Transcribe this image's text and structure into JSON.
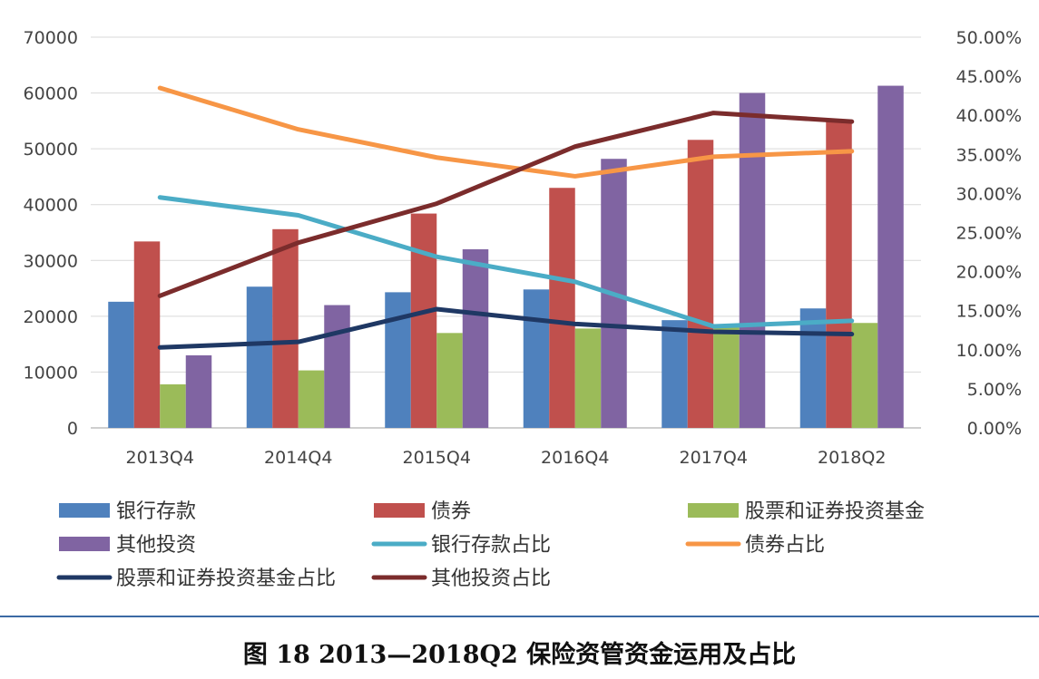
{
  "caption": "图 18  2013—2018Q2 保险资管资金运用及占比",
  "chart_data": {
    "type": "bar",
    "categories": [
      "2013Q4",
      "2014Q4",
      "2015Q4",
      "2016Q4",
      "2017Q4",
      "2018Q2"
    ],
    "y_left": {
      "min": 0,
      "max": 70000,
      "ticks": [
        0,
        10000,
        20000,
        30000,
        40000,
        50000,
        60000,
        70000
      ],
      "tick_labels": [
        "0",
        "10000",
        "20000",
        "30000",
        "40000",
        "50000",
        "60000",
        "70000"
      ]
    },
    "y_right": {
      "min": 0,
      "max": 0.5,
      "ticks": [
        0,
        0.05,
        0.1,
        0.15,
        0.2,
        0.25,
        0.3,
        0.35,
        0.4,
        0.45,
        0.5
      ],
      "tick_labels": [
        "0.00%",
        "5.00%",
        "10.00%",
        "15.00%",
        "20.00%",
        "25.00%",
        "30.00%",
        "35.00%",
        "40.00%",
        "45.00%",
        "50.00%"
      ]
    },
    "grid": true,
    "legend_position": "bottom",
    "bar_series": [
      {
        "name": "银行存款",
        "color": "#4f81bd",
        "values": [
          22600,
          25300,
          24300,
          24800,
          19300,
          21400
        ]
      },
      {
        "name": "债券",
        "color": "#c0504d",
        "values": [
          33400,
          35600,
          38400,
          43000,
          51600,
          55000
        ]
      },
      {
        "name": "股票和证券投资基金",
        "color": "#9bbb59",
        "values": [
          7800,
          10300,
          17000,
          17800,
          18400,
          18800
        ]
      },
      {
        "name": "其他投资",
        "color": "#8064a2",
        "values": [
          13000,
          22000,
          32000,
          48200,
          60000,
          61300
        ]
      }
    ],
    "line_series": [
      {
        "name": "银行存款占比",
        "color": "#4bacc6",
        "values": [
          0.295,
          0.272,
          0.219,
          0.187,
          0.13,
          0.137
        ]
      },
      {
        "name": "债券占比",
        "color": "#f79646",
        "values": [
          0.435,
          0.382,
          0.346,
          0.322,
          0.347,
          0.354
        ]
      },
      {
        "name": "股票和证券投资基金占比",
        "color": "#1f3864",
        "values": [
          0.103,
          0.11,
          0.152,
          0.133,
          0.123,
          0.12
        ]
      },
      {
        "name": "其他投资占比",
        "color": "#7b2c2c",
        "values": [
          0.169,
          0.237,
          0.287,
          0.36,
          0.403,
          0.392
        ]
      }
    ]
  }
}
